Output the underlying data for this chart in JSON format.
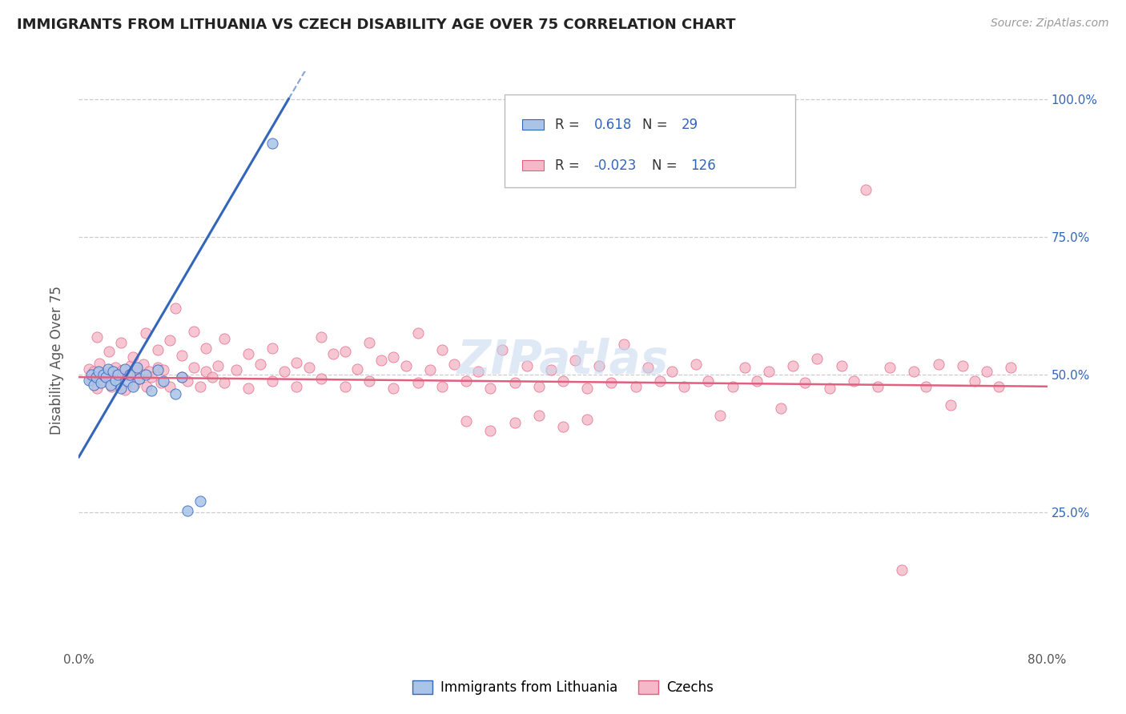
{
  "title": "IMMIGRANTS FROM LITHUANIA VS CZECH DISABILITY AGE OVER 75 CORRELATION CHART",
  "source": "Source: ZipAtlas.com",
  "ylabel": "Disability Age Over 75",
  "xlim": [
    0.0,
    0.8
  ],
  "ylim": [
    0.0,
    1.05
  ],
  "color_blue": "#aac4e8",
  "color_pink": "#f5b8c8",
  "line_blue": "#3366bb",
  "line_pink": "#e06080",
  "watermark": "ZIPatlas",
  "blue_x": [
    0.008,
    0.01,
    0.012,
    0.014,
    0.016,
    0.018,
    0.02,
    0.022,
    0.024,
    0.026,
    0.028,
    0.03,
    0.032,
    0.035,
    0.038,
    0.04,
    0.042,
    0.045,
    0.048,
    0.05,
    0.055,
    0.06,
    0.065,
    0.07,
    0.08,
    0.09,
    0.1,
    0.16,
    0.085
  ],
  "blue_y": [
    0.49,
    0.5,
    0.48,
    0.495,
    0.505,
    0.485,
    0.5,
    0.495,
    0.51,
    0.48,
    0.505,
    0.49,
    0.5,
    0.475,
    0.51,
    0.488,
    0.5,
    0.478,
    0.512,
    0.492,
    0.5,
    0.47,
    0.508,
    0.488,
    0.465,
    0.252,
    0.27,
    0.92,
    0.495
  ],
  "pink_x": [
    0.008,
    0.01,
    0.012,
    0.015,
    0.017,
    0.02,
    0.022,
    0.025,
    0.027,
    0.03,
    0.033,
    0.036,
    0.038,
    0.04,
    0.043,
    0.046,
    0.048,
    0.05,
    0.053,
    0.056,
    0.058,
    0.06,
    0.065,
    0.068,
    0.07,
    0.075,
    0.08,
    0.085,
    0.09,
    0.095,
    0.1,
    0.105,
    0.11,
    0.115,
    0.12,
    0.13,
    0.14,
    0.15,
    0.16,
    0.17,
    0.18,
    0.19,
    0.2,
    0.21,
    0.22,
    0.23,
    0.24,
    0.25,
    0.26,
    0.27,
    0.28,
    0.29,
    0.3,
    0.31,
    0.32,
    0.33,
    0.34,
    0.35,
    0.36,
    0.37,
    0.38,
    0.39,
    0.4,
    0.41,
    0.42,
    0.43,
    0.44,
    0.45,
    0.46,
    0.47,
    0.48,
    0.49,
    0.5,
    0.51,
    0.52,
    0.53,
    0.54,
    0.55,
    0.56,
    0.57,
    0.58,
    0.59,
    0.6,
    0.61,
    0.62,
    0.63,
    0.64,
    0.65,
    0.66,
    0.67,
    0.68,
    0.69,
    0.7,
    0.71,
    0.72,
    0.73,
    0.74,
    0.75,
    0.76,
    0.77,
    0.015,
    0.025,
    0.035,
    0.045,
    0.055,
    0.065,
    0.075,
    0.085,
    0.095,
    0.105,
    0.12,
    0.14,
    0.16,
    0.18,
    0.2,
    0.22,
    0.24,
    0.26,
    0.28,
    0.3,
    0.32,
    0.34,
    0.36,
    0.38,
    0.4,
    0.42
  ],
  "pink_y": [
    0.51,
    0.49,
    0.505,
    0.475,
    0.52,
    0.498,
    0.488,
    0.505,
    0.478,
    0.512,
    0.495,
    0.508,
    0.472,
    0.498,
    0.515,
    0.482,
    0.508,
    0.492,
    0.518,
    0.478,
    0.505,
    0.495,
    0.512,
    0.485,
    0.508,
    0.478,
    0.62,
    0.495,
    0.488,
    0.512,
    0.478,
    0.505,
    0.495,
    0.515,
    0.485,
    0.508,
    0.475,
    0.518,
    0.488,
    0.505,
    0.478,
    0.512,
    0.492,
    0.538,
    0.478,
    0.51,
    0.488,
    0.525,
    0.475,
    0.515,
    0.485,
    0.508,
    0.478,
    0.518,
    0.488,
    0.505,
    0.475,
    0.545,
    0.485,
    0.515,
    0.478,
    0.508,
    0.488,
    0.525,
    0.475,
    0.515,
    0.485,
    0.555,
    0.478,
    0.512,
    0.488,
    0.505,
    0.478,
    0.518,
    0.488,
    0.425,
    0.478,
    0.512,
    0.488,
    0.505,
    0.438,
    0.515,
    0.485,
    0.528,
    0.475,
    0.515,
    0.488,
    0.835,
    0.478,
    0.512,
    0.145,
    0.505,
    0.478,
    0.518,
    0.445,
    0.515,
    0.488,
    0.505,
    0.478,
    0.512,
    0.568,
    0.542,
    0.558,
    0.532,
    0.575,
    0.545,
    0.562,
    0.535,
    0.578,
    0.548,
    0.565,
    0.538,
    0.548,
    0.522,
    0.568,
    0.542,
    0.558,
    0.532,
    0.575,
    0.545,
    0.415,
    0.398,
    0.412,
    0.425,
    0.405,
    0.418
  ]
}
